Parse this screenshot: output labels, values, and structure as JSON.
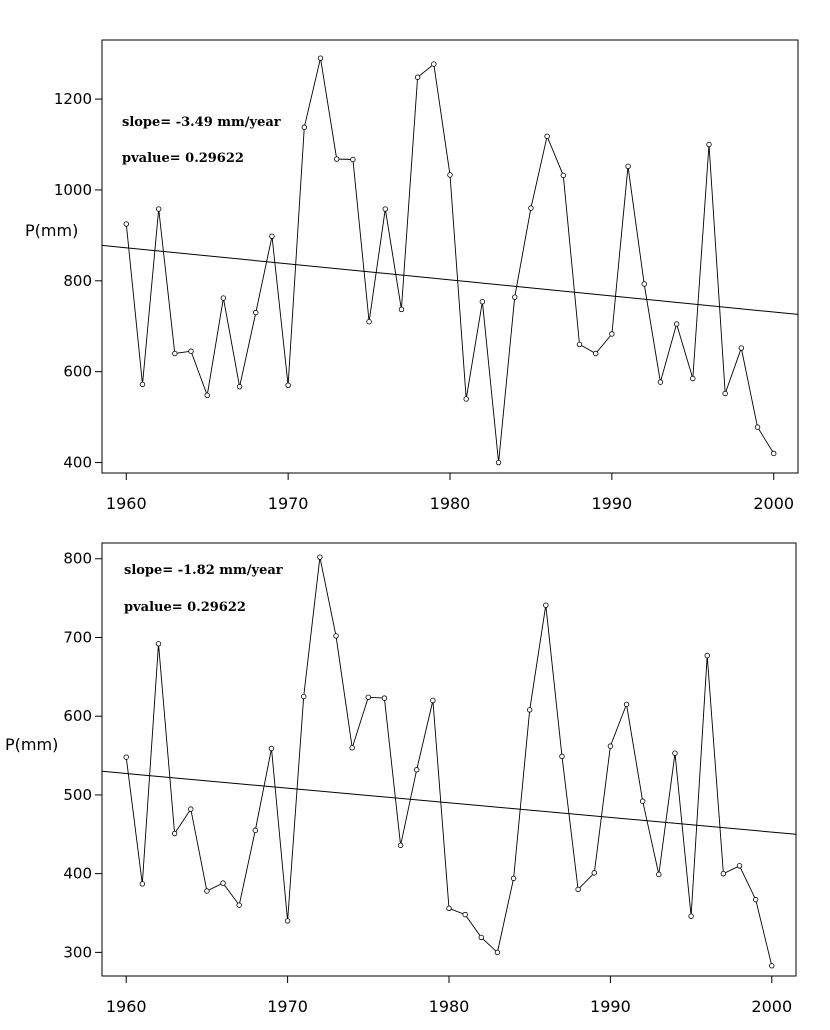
{
  "chart_data": [
    {
      "type": "line",
      "ylabel": "P(mm)",
      "xlim": [
        1958.5,
        2001.5
      ],
      "ylim": [
        377,
        1330
      ],
      "xticks": [
        1960,
        1970,
        1980,
        1990,
        2000
      ],
      "yticks": [
        400,
        600,
        800,
        1000,
        1200
      ],
      "annotations": [
        "slope= -3.49 mm/year",
        "pvalue= 0.29622"
      ],
      "trend": {
        "x": [
          1958.5,
          2001.5
        ],
        "y": [
          878,
          726
        ]
      },
      "series": [
        {
          "x": [
            1960,
            1961,
            1962,
            1963,
            1964,
            1965,
            1966,
            1967,
            1968,
            1969,
            1970,
            1971,
            1972,
            1973,
            1974,
            1975,
            1976,
            1977,
            1978,
            1979,
            1980,
            1981,
            1982,
            1983,
            1984,
            1985,
            1986,
            1987,
            1988,
            1989,
            1990,
            1991,
            1992,
            1993,
            1994,
            1995,
            1996,
            1997,
            1998,
            1999,
            2000
          ],
          "y": [
            925,
            572,
            958,
            640,
            645,
            548,
            762,
            567,
            730,
            898,
            570,
            1138,
            1290,
            1068,
            1067,
            710,
            958,
            737,
            1248,
            1277,
            1033,
            540,
            754,
            400,
            764,
            960,
            1118,
            1032,
            660,
            640,
            683,
            1052,
            793,
            577,
            705,
            585,
            1100,
            552,
            652,
            478,
            420
          ]
        }
      ]
    },
    {
      "type": "line",
      "ylabel": "P(mm)",
      "xlim": [
        1958.5,
        2001.5
      ],
      "ylim": [
        270,
        820
      ],
      "xticks": [
        1960,
        1970,
        1980,
        1990,
        2000
      ],
      "yticks": [
        300,
        400,
        500,
        600,
        700,
        800
      ],
      "annotations": [
        "slope= -1.82 mm/year",
        "pvalue= 0.29622"
      ],
      "trend": {
        "x": [
          1958.5,
          2001.5
        ],
        "y": [
          530,
          450
        ]
      },
      "series": [
        {
          "x": [
            1960,
            1961,
            1962,
            1963,
            1964,
            1965,
            1966,
            1967,
            1968,
            1969,
            1970,
            1971,
            1972,
            1973,
            1974,
            1975,
            1976,
            1977,
            1978,
            1979,
            1980,
            1981,
            1982,
            1983,
            1984,
            1985,
            1986,
            1987,
            1988,
            1989,
            1990,
            1991,
            1992,
            1993,
            1994,
            1995,
            1996,
            1997,
            1998,
            1999,
            2000
          ],
          "y": [
            548,
            387,
            692,
            451,
            482,
            378,
            388,
            360,
            455,
            559,
            340,
            625,
            802,
            702,
            560,
            624,
            623,
            436,
            532,
            620,
            356,
            348,
            319,
            300,
            394,
            608,
            741,
            549,
            380,
            401,
            562,
            615,
            492,
            399,
            553,
            346,
            677,
            400,
            410,
            367,
            283
          ]
        }
      ]
    }
  ]
}
